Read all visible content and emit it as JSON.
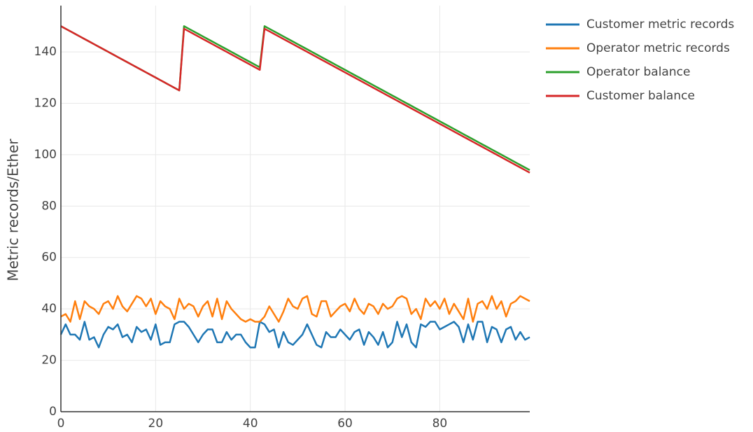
{
  "chart_data": {
    "type": "line",
    "y_label": "Metric records/Ether",
    "x": [
      0,
      1,
      2,
      3,
      4,
      5,
      6,
      7,
      8,
      9,
      10,
      11,
      12,
      13,
      14,
      15,
      16,
      17,
      18,
      19,
      20,
      21,
      22,
      23,
      24,
      25,
      26,
      27,
      28,
      29,
      30,
      31,
      32,
      33,
      34,
      35,
      36,
      37,
      38,
      39,
      40,
      41,
      42,
      43,
      44,
      45,
      46,
      47,
      48,
      49,
      50,
      51,
      52,
      53,
      54,
      55,
      56,
      57,
      58,
      59,
      60,
      61,
      62,
      63,
      64,
      65,
      66,
      67,
      68,
      69,
      70,
      71,
      72,
      73,
      74,
      75,
      76,
      77,
      78,
      79,
      80,
      81,
      82,
      83,
      84,
      85,
      86,
      87,
      88,
      89,
      90,
      91,
      92,
      93,
      94,
      95,
      96,
      97,
      98,
      99
    ],
    "series": [
      {
        "name": "Customer metric records",
        "color": "#1f77b4",
        "values": [
          30,
          34,
          30,
          30,
          28,
          35,
          28,
          29,
          25,
          30,
          33,
          32,
          34,
          29,
          30,
          27,
          33,
          31,
          32,
          28,
          34,
          26,
          27,
          27,
          34,
          35,
          35,
          33,
          30,
          27,
          30,
          32,
          32,
          27,
          27,
          31,
          28,
          30,
          30,
          27,
          25,
          25,
          35,
          34,
          31,
          32,
          25,
          31,
          27,
          26,
          28,
          30,
          34,
          30,
          26,
          25,
          31,
          29,
          29,
          32,
          30,
          28,
          31,
          32,
          26,
          31,
          29,
          26,
          31,
          25,
          27,
          35,
          29,
          34,
          27,
          25,
          34,
          33,
          35,
          35,
          32,
          33,
          34,
          35,
          33,
          27,
          34,
          28,
          35,
          35,
          27,
          33,
          32,
          27,
          32,
          33,
          28,
          31,
          28,
          29
        ]
      },
      {
        "name": "Operator metric records",
        "color": "#ff7f0e",
        "values": [
          37,
          38,
          35,
          43,
          36,
          43,
          41,
          40,
          38,
          42,
          43,
          40,
          45,
          41,
          39,
          42,
          45,
          44,
          41,
          44,
          38,
          43,
          41,
          40,
          36,
          44,
          40,
          42,
          41,
          37,
          41,
          43,
          37,
          44,
          36,
          43,
          40,
          38,
          36,
          35,
          36,
          35,
          35,
          37,
          41,
          38,
          35,
          39,
          44,
          41,
          40,
          44,
          45,
          38,
          37,
          43,
          43,
          37,
          39,
          41,
          42,
          39,
          44,
          40,
          38,
          42,
          41,
          38,
          42,
          40,
          41,
          44,
          45,
          44,
          38,
          40,
          36,
          44,
          41,
          43,
          40,
          44,
          38,
          42,
          39,
          36,
          44,
          35,
          42,
          43,
          40,
          45,
          40,
          43,
          37,
          42,
          43,
          45,
          44,
          43
        ]
      },
      {
        "name": "Operator balance",
        "color": "#2ca02c",
        "values": [
          150,
          149,
          148,
          147,
          146,
          145,
          144,
          143,
          142,
          141,
          140,
          139,
          138,
          137,
          136,
          135,
          134,
          133,
          132,
          131,
          130,
          129,
          128,
          127,
          126,
          125,
          150,
          149,
          148,
          147,
          146,
          145,
          144,
          143,
          142,
          141,
          140,
          139,
          138,
          137,
          136,
          135,
          134,
          150,
          149,
          148,
          147,
          146,
          145,
          144,
          143,
          142,
          141,
          140,
          139,
          138,
          137,
          136,
          135,
          134,
          133,
          132,
          131,
          130,
          129,
          128,
          127,
          126,
          125,
          124,
          123,
          122,
          121,
          120,
          119,
          118,
          117,
          116,
          115,
          114,
          113,
          112,
          111,
          110,
          109,
          108,
          107,
          106,
          105,
          104,
          103,
          102,
          101,
          100,
          99,
          98,
          97,
          96,
          95,
          94
        ]
      },
      {
        "name": "Customer balance",
        "color": "#d62728",
        "values": [
          150,
          149,
          148,
          147,
          146,
          145,
          144,
          143,
          142,
          141,
          140,
          139,
          138,
          137,
          136,
          135,
          134,
          133,
          132,
          131,
          130,
          129,
          128,
          127,
          126,
          125,
          149,
          148,
          147,
          146,
          145,
          144,
          143,
          142,
          141,
          140,
          139,
          138,
          137,
          136,
          135,
          134,
          133,
          149,
          148,
          147,
          146,
          145,
          144,
          143,
          142,
          141,
          140,
          139,
          138,
          137,
          136,
          135,
          134,
          133,
          132,
          131,
          130,
          129,
          128,
          127,
          126,
          125,
          124,
          123,
          122,
          121,
          120,
          119,
          118,
          117,
          116,
          115,
          114,
          113,
          112,
          111,
          110,
          109,
          108,
          107,
          106,
          105,
          104,
          103,
          102,
          101,
          100,
          99,
          98,
          97,
          96,
          95,
          94,
          93
        ]
      }
    ],
    "xlim": [
      0,
      99
    ],
    "ylim": [
      0,
      158
    ],
    "xticks": [
      0,
      20,
      40,
      60,
      80
    ],
    "yticks": [
      0,
      20,
      40,
      60,
      80,
      100,
      120,
      140
    ],
    "grid": true,
    "legend": "right"
  }
}
